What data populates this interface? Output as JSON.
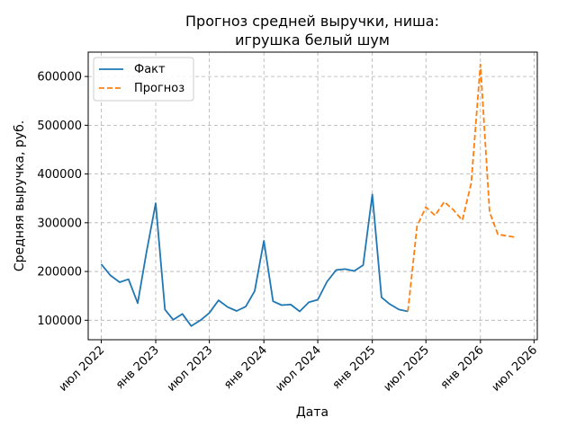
{
  "chart_data": {
    "type": "line",
    "title_lines": [
      "Прогноз средней выручки, ниша:",
      "игрушка белый шум"
    ],
    "xlabel": "Дата",
    "ylabel": "Средняя выручка, руб.",
    "ylim": [
      60000,
      650000
    ],
    "xlim": [
      "2022-05-18",
      "2026-07-12"
    ],
    "grid": true,
    "legend_position": "upper-left",
    "y_ticks": [
      100000,
      200000,
      300000,
      400000,
      500000,
      600000
    ],
    "x_ticks": [
      {
        "date": "2022-07-01",
        "label": "июл 2022"
      },
      {
        "date": "2023-01-01",
        "label": "янв 2023"
      },
      {
        "date": "2023-07-01",
        "label": "июл 2023"
      },
      {
        "date": "2024-01-01",
        "label": "янв 2024"
      },
      {
        "date": "2024-07-01",
        "label": "июл 2024"
      },
      {
        "date": "2025-01-01",
        "label": "янв 2025"
      },
      {
        "date": "2025-07-01",
        "label": "июл 2025"
      },
      {
        "date": "2026-01-01",
        "label": "янв 2026"
      },
      {
        "date": "2026-07-01",
        "label": "июл 2026"
      }
    ],
    "series": [
      {
        "name": "Факт",
        "color": "#1f77b4",
        "dash": "solid",
        "points": [
          [
            "2022-07-01",
            215000
          ],
          [
            "2022-08-01",
            192000
          ],
          [
            "2022-09-01",
            178000
          ],
          [
            "2022-10-01",
            184000
          ],
          [
            "2022-11-01",
            135000
          ],
          [
            "2022-12-01",
            240000
          ],
          [
            "2023-01-01",
            340000
          ],
          [
            "2023-02-01",
            122000
          ],
          [
            "2023-03-01",
            101000
          ],
          [
            "2023-04-01",
            113000
          ],
          [
            "2023-05-01",
            88000
          ],
          [
            "2023-06-01",
            100000
          ],
          [
            "2023-07-01",
            115000
          ],
          [
            "2023-08-01",
            141000
          ],
          [
            "2023-09-01",
            127000
          ],
          [
            "2023-10-01",
            119000
          ],
          [
            "2023-11-01",
            128000
          ],
          [
            "2023-12-01",
            160000
          ],
          [
            "2024-01-01",
            263000
          ],
          [
            "2024-02-01",
            139000
          ],
          [
            "2024-03-01",
            131000
          ],
          [
            "2024-04-01",
            132000
          ],
          [
            "2024-05-01",
            118000
          ],
          [
            "2024-06-01",
            137000
          ],
          [
            "2024-07-01",
            142000
          ],
          [
            "2024-08-01",
            179000
          ],
          [
            "2024-09-01",
            203000
          ],
          [
            "2024-10-01",
            205000
          ],
          [
            "2024-11-01",
            201000
          ],
          [
            "2024-12-01",
            213000
          ],
          [
            "2025-01-01",
            358000
          ],
          [
            "2025-02-01",
            147000
          ],
          [
            "2025-03-01",
            133000
          ],
          [
            "2025-04-01",
            122000
          ],
          [
            "2025-05-01",
            118000
          ]
        ]
      },
      {
        "name": "Прогноз",
        "color": "#ff7f0e",
        "dash": "dashed",
        "points": [
          [
            "2025-05-01",
            118000
          ],
          [
            "2025-06-01",
            293000
          ],
          [
            "2025-07-01",
            332000
          ],
          [
            "2025-08-01",
            315000
          ],
          [
            "2025-09-01",
            343000
          ],
          [
            "2025-10-01",
            327000
          ],
          [
            "2025-11-01",
            305000
          ],
          [
            "2025-12-01",
            381000
          ],
          [
            "2026-01-01",
            625000
          ],
          [
            "2026-02-01",
            322000
          ],
          [
            "2026-03-01",
            276000
          ],
          [
            "2026-04-01",
            273000
          ],
          [
            "2026-05-01",
            270000
          ]
        ]
      }
    ]
  }
}
